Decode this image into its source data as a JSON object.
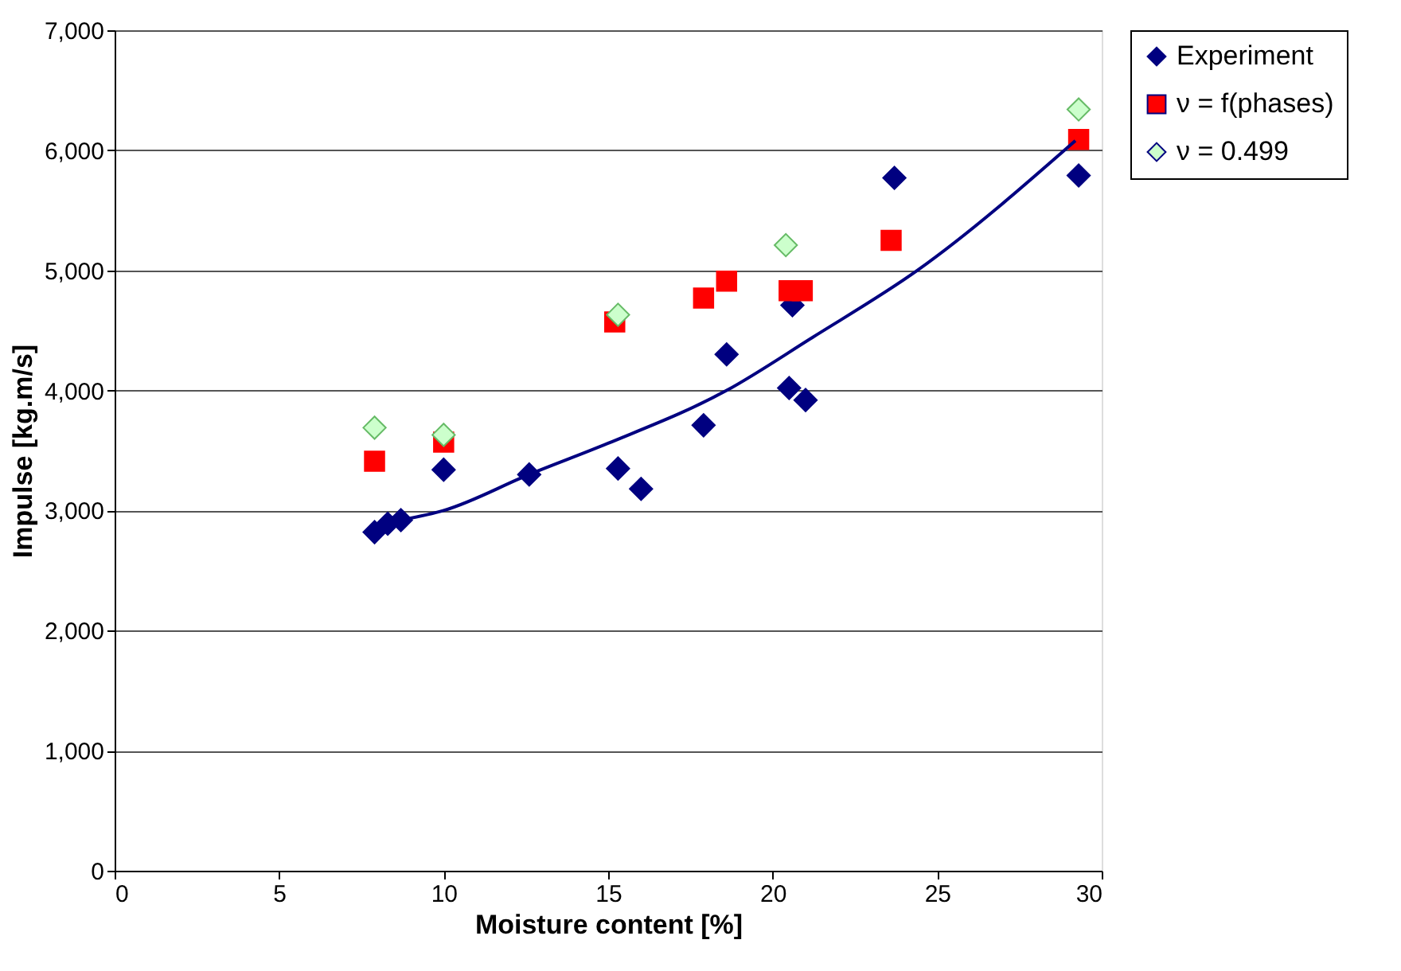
{
  "chart_data": {
    "type": "scatter",
    "xlabel": "Moisture content [%]",
    "ylabel": "Impulse [kg.m/s]",
    "xlim": [
      0,
      30
    ],
    "xticks": [
      0,
      5,
      10,
      15,
      20,
      25,
      30
    ],
    "ylim": [
      0,
      7000
    ],
    "yticks": [
      0,
      {
        "value": 1000,
        "label": "1,000"
      },
      {
        "value": 2000,
        "label": "2,000"
      },
      {
        "value": 3000,
        "label": "3,000"
      },
      {
        "value": 4000,
        "label": "4,000"
      },
      {
        "value": 5000,
        "label": "5,000"
      },
      {
        "value": 6000,
        "label": "6,000"
      },
      {
        "value": 7000,
        "label": "7,000"
      }
    ],
    "grid": "y",
    "legend": "right",
    "series": [
      {
        "name": "Experiment",
        "color": "#000080",
        "marker": "diamond",
        "x": [
          7.9,
          8.3,
          8.7,
          10.0,
          12.6,
          15.3,
          16.0,
          17.9,
          18.6,
          20.5,
          20.6,
          21.0,
          23.7,
          29.3
        ],
        "values": [
          2820,
          2890,
          2920,
          3340,
          3300,
          3350,
          3180,
          3710,
          4300,
          4020,
          4710,
          3920,
          5770,
          5790
        ]
      },
      {
        "name": "ν = f(phases)",
        "color": "#ff0000",
        "marker": "square",
        "x": [
          7.9,
          10.0,
          15.2,
          17.9,
          18.6,
          20.5,
          20.9,
          23.6,
          29.3
        ],
        "values": [
          3410,
          3570,
          4570,
          4770,
          4910,
          4830,
          4830,
          5250,
          6090
        ]
      },
      {
        "name": "ν = 0.499",
        "color": "#ccffcc",
        "marker": "diamond",
        "x": [
          7.9,
          10.0,
          15.3,
          20.4,
          29.3
        ],
        "values": [
          3690,
          3630,
          4630,
          5210,
          6340
        ]
      },
      {
        "type": "line",
        "color": "#000080",
        "x": [
          8.7,
          10.0,
          12.6,
          15.0,
          18.6,
          21.2,
          24.4,
          29.2
        ],
        "values": [
          2920,
          3000,
          3300,
          3560,
          4000,
          4440,
          5000,
          6080
        ]
      }
    ]
  }
}
